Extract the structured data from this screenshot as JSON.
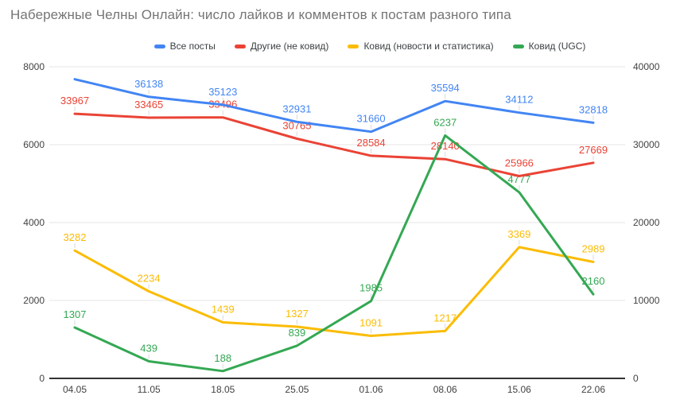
{
  "title": "Набережные Челны Онлайн: число лайков и комментов к постам разного типа",
  "colors": {
    "title": "#757575",
    "axis_text": "#424242",
    "gridline": "#e6e6e6",
    "baseline": "#333333",
    "leader": "#d9d9d9",
    "background": "#ffffff"
  },
  "chart_data": {
    "type": "line",
    "title": "Набережные Челны Онлайн: число лайков и комментов к постам разного типа",
    "categories": [
      "04.05",
      "11.05",
      "18.05",
      "25.05",
      "01.06",
      "08.06",
      "15.06",
      "22.06"
    ],
    "series": [
      {
        "name": "Все посты",
        "color": "#4285F4",
        "axis": "right",
        "values": [
          38400,
          36138,
          35123,
          32931,
          31660,
          35594,
          34112,
          32818
        ],
        "labels": [
          "",
          "36138",
          "35123",
          "32931",
          "31660",
          "35594",
          "34112",
          "32818"
        ]
      },
      {
        "name": "Другие (не ковид)",
        "color": "#EA4335",
        "axis": "right",
        "values": [
          33967,
          33465,
          33496,
          30765,
          28584,
          28140,
          25966,
          27669
        ],
        "labels": [
          "33967",
          "33465",
          "33496",
          "30765",
          "28584",
          "28140",
          "25966",
          "27669"
        ]
      },
      {
        "name": "Ковид (новости и статистика)",
        "color": "#FBBC04",
        "axis": "left",
        "values": [
          3282,
          2234,
          1439,
          1327,
          1091,
          1217,
          3369,
          2989
        ],
        "labels": [
          "3282",
          "2234",
          "1439",
          "1327",
          "1091",
          "1217",
          "3369",
          "2989"
        ]
      },
      {
        "name": "Ковид (UGC)",
        "color": "#34A853",
        "axis": "left",
        "values": [
          1307,
          439,
          188,
          839,
          1985,
          6237,
          4777,
          2160
        ],
        "labels": [
          "1307",
          "439",
          "188",
          "839",
          "1985",
          "6237",
          "4777",
          "2160"
        ]
      }
    ],
    "left_axis": {
      "min": 0,
      "max": 8000,
      "ticks": [
        0,
        2000,
        4000,
        6000,
        8000
      ]
    },
    "right_axis": {
      "min": 0,
      "max": 40000,
      "ticks": [
        0,
        10000,
        20000,
        30000,
        40000
      ]
    },
    "grid": true,
    "legend_position": "top"
  }
}
